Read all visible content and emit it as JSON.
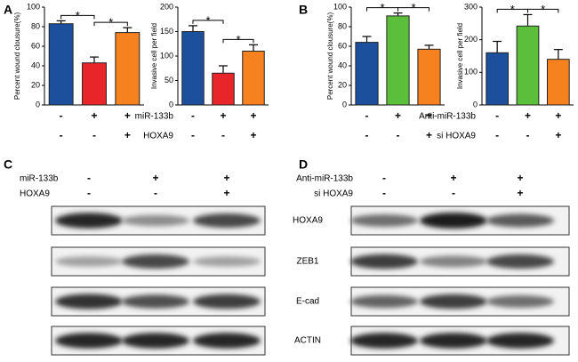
{
  "panel_labels": [
    "A",
    "B",
    "C",
    "D"
  ],
  "chart_data": [
    {
      "type": "bar",
      "y_label": "Percent wound clousure(%)",
      "ylim": [
        0,
        100
      ],
      "yticks": [
        0,
        20,
        40,
        60,
        80,
        100
      ],
      "values": [
        83,
        43,
        74
      ],
      "errors": [
        3,
        6,
        5
      ],
      "colors": [
        "#1c4f9c",
        "#e8262a",
        "#f5821f"
      ],
      "row_labels": [
        "miR-133b",
        "HOXA9"
      ],
      "signs": [
        [
          "-",
          "+",
          "+"
        ],
        [
          "-",
          "-",
          "+"
        ]
      ],
      "significance": [
        {
          "from": 0,
          "to": 1,
          "label": "*"
        },
        {
          "from": 1,
          "to": 2,
          "label": "*"
        }
      ]
    },
    {
      "type": "bar",
      "y_label": "Invasive cell per field",
      "ylim": [
        0,
        200
      ],
      "yticks": [
        0,
        50,
        100,
        150,
        200
      ],
      "values": [
        150,
        65,
        110
      ],
      "errors": [
        12,
        15,
        13
      ],
      "colors": [
        "#1c4f9c",
        "#e8262a",
        "#f5821f"
      ],
      "signs": [
        [
          "-",
          "+",
          "+"
        ],
        [
          "-",
          "-",
          "+"
        ]
      ],
      "significance": [
        {
          "from": 0,
          "to": 1,
          "label": "*"
        },
        {
          "from": 1,
          "to": 2,
          "label": "*"
        }
      ]
    },
    {
      "type": "bar",
      "y_label": "Percent wound clousure(%)",
      "ylim": [
        0,
        100
      ],
      "yticks": [
        0,
        20,
        40,
        60,
        80,
        100
      ],
      "values": [
        64,
        91,
        57
      ],
      "errors": [
        6,
        3,
        4
      ],
      "colors": [
        "#1c4f9c",
        "#5bbf3b",
        "#f5821f"
      ],
      "row_labels": [
        "Anti-miR-133b",
        "si HOXA9"
      ],
      "signs": [
        [
          "-",
          "+",
          "+"
        ],
        [
          "-",
          "-",
          "+"
        ]
      ],
      "significance": [
        {
          "from": 0,
          "to": 1,
          "label": "*"
        },
        {
          "from": 1,
          "to": 2,
          "label": "*"
        }
      ]
    },
    {
      "type": "bar",
      "y_label": "Invasive cell per field",
      "ylim": [
        0,
        300
      ],
      "yticks": [
        0,
        100,
        200,
        300
      ],
      "values": [
        160,
        242,
        140
      ],
      "errors": [
        35,
        35,
        30
      ],
      "colors": [
        "#1c4f9c",
        "#5bbf3b",
        "#f5821f"
      ],
      "signs": [
        [
          "-",
          "+",
          "+"
        ],
        [
          "-",
          "-",
          "+"
        ]
      ],
      "significance": [
        {
          "from": 0,
          "to": 1,
          "label": "*"
        },
        {
          "from": 1,
          "to": 2,
          "label": "*"
        }
      ]
    }
  ],
  "blots": [
    {
      "conditions": [
        {
          "name": "miR-133b",
          "signs": [
            "-",
            "+",
            "+"
          ]
        },
        {
          "name": "HOXA9",
          "signs": [
            "-",
            "-",
            "+"
          ]
        }
      ]
    },
    {
      "conditions": [
        {
          "name": "Anti-miR-133b",
          "signs": [
            "-",
            "+",
            "+"
          ]
        },
        {
          "name": "si HOXA9",
          "signs": [
            "-",
            "-",
            "+"
          ]
        }
      ]
    }
  ],
  "blot_rows": [
    "HOXA9",
    "ZEB1",
    "E-cad",
    "ACTIN"
  ]
}
